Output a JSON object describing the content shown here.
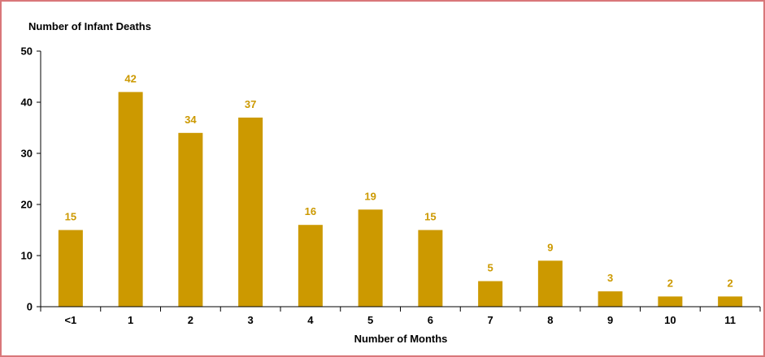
{
  "chart_data": {
    "type": "bar",
    "ylabel": "Number of Infant Deaths",
    "xlabel": "Number of Months",
    "categories": [
      "<1",
      "1",
      "2",
      "3",
      "4",
      "5",
      "6",
      "7",
      "8",
      "9",
      "10",
      "11"
    ],
    "values": [
      15,
      42,
      34,
      37,
      16,
      19,
      15,
      5,
      9,
      3,
      2,
      2
    ],
    "ylim": [
      0,
      50
    ],
    "yticks": [
      "0",
      "10",
      "20",
      "30",
      "40",
      "50"
    ],
    "bar_color": "#cc9900",
    "label_color": "#cc9900",
    "grid": false,
    "legend": "none"
  }
}
